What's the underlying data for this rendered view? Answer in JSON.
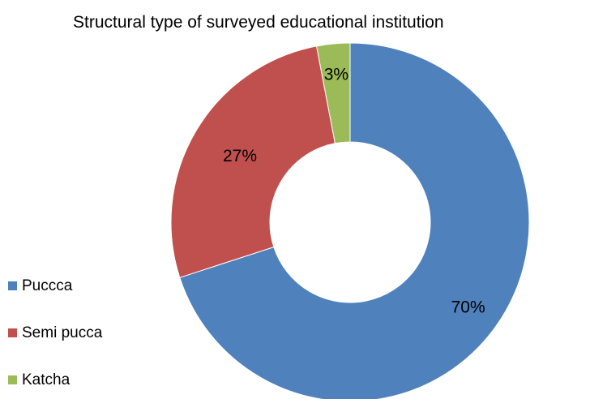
{
  "chart_data": {
    "type": "pie",
    "variant": "donut",
    "title": "Structural type of surveyed educational institution",
    "categories": [
      "Puccca",
      "Semi pucca",
      "Katcha"
    ],
    "values": [
      70,
      27,
      3
    ],
    "data_labels": [
      "70%",
      "27%",
      "3%"
    ],
    "colors": [
      "#4f81bd",
      "#c0504d",
      "#9bbb59"
    ],
    "legend_position": "left"
  }
}
